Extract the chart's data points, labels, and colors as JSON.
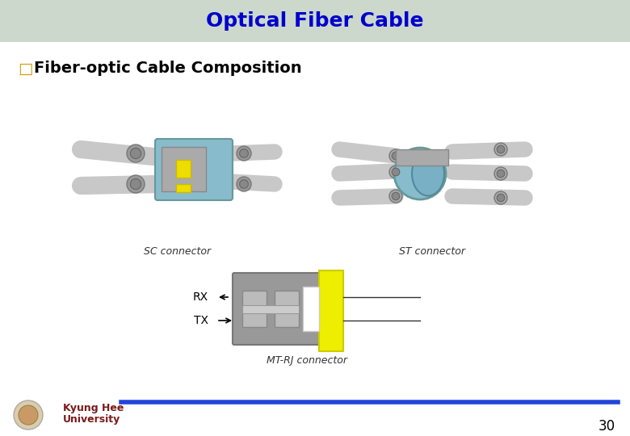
{
  "title": "Optical Fiber Cable",
  "title_color": "#0000CC",
  "title_bg_color": "#ccd8cc",
  "bullet_text": "Fiber-optic Cable Composition",
  "bullet_symbol": "□",
  "bullet_color": "#cc9900",
  "bg_color": "#ffffff",
  "footer_line_color": "#2244dd",
  "footer_text_color": "#7a1a1a",
  "page_number": "30",
  "sc_label": "SC connector",
  "st_label": "ST connector",
  "mt_label": "MT-RJ connector",
  "rx_label": "RX",
  "tx_label": "TX",
  "title_fontsize": 18,
  "bullet_fontsize": 14,
  "label_fontsize": 9,
  "connector_label_fontsize": 9,
  "page_fontsize": 12
}
